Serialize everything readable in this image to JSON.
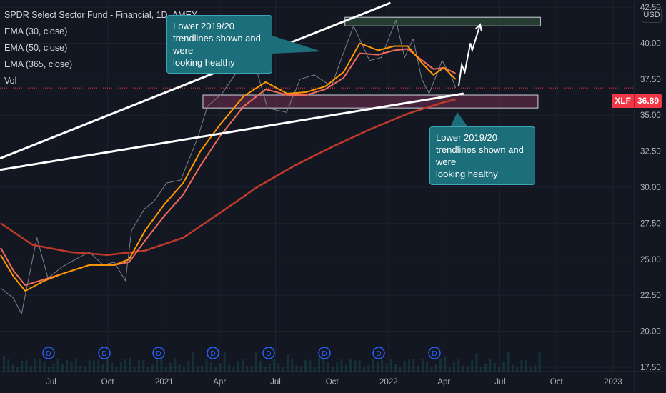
{
  "legend": {
    "title": "SPDR Select Sector Fund - Financial, 1D, AMEX",
    "indicators": [
      "EMA (30, close)",
      "EMA (50, close)",
      "EMA (365, close)",
      "Vol"
    ]
  },
  "currency": "USD",
  "price_tag": {
    "symbol": "XLF",
    "value": "36.89"
  },
  "callouts": [
    {
      "lines": [
        "Lower 2019/20",
        "trendlines shown and were",
        "looking healthy"
      ]
    },
    {
      "lines": [
        "Lower 2019/20",
        "trendlines shown and were",
        "looking healthy"
      ]
    }
  ],
  "colors": {
    "background": "#131722",
    "grid": "#1e222d",
    "candle_up": "#26a69a",
    "candle_down": "#ef5350",
    "ema30": "#ff9800",
    "ema50": "#f06a5b",
    "ema365": "#c0392b",
    "trendline": "#ffffff",
    "resistance_box": "#2e4a3a",
    "support_box": "#5a2a44",
    "price_line": "#f23645"
  },
  "chart_data": {
    "type": "line",
    "title": "SPDR Select Sector Fund - Financial, 1D, AMEX",
    "y_ticks": [
      17.5,
      20.0,
      22.5,
      25.0,
      27.5,
      30.0,
      32.5,
      35.0,
      37.5,
      40.0,
      42.5
    ],
    "y_tick_labels": [
      "17.50",
      "20.00",
      "22.50",
      "25.00",
      "27.50",
      "30.00",
      "32.50",
      "35.00",
      "37.50",
      "40.00",
      "42.50"
    ],
    "ylim": [
      17.2,
      43.0
    ],
    "x_tick_labels": [
      "Jul",
      "Oct",
      "2021",
      "Apr",
      "Jul",
      "Oct",
      "2022",
      "Apr",
      "Jul",
      "Oct",
      "2023"
    ],
    "x_ticks": [
      "2020-07-01",
      "2020-10-01",
      "2021-01-01",
      "2021-04-01",
      "2021-07-01",
      "2021-10-01",
      "2022-01-01",
      "2022-04-01",
      "2022-07-01",
      "2022-10-01",
      "2023-01-01"
    ],
    "xlim": [
      "2020-04-09",
      "2023-02-05"
    ],
    "last_price": 36.89,
    "series": [
      {
        "name": "Price",
        "x": [
          "2020-04-10",
          "2020-05-01",
          "2020-05-14",
          "2020-06-08",
          "2020-06-26",
          "2020-07-20",
          "2020-08-10",
          "2020-09-01",
          "2020-09-24",
          "2020-10-12",
          "2020-10-30",
          "2020-11-09",
          "2020-11-30",
          "2020-12-15",
          "2021-01-05",
          "2021-01-28",
          "2021-02-25",
          "2021-03-12",
          "2021-04-05",
          "2021-05-07",
          "2021-05-28",
          "2021-06-18",
          "2021-07-19",
          "2021-08-10",
          "2021-09-02",
          "2021-09-30",
          "2021-10-15",
          "2021-11-05",
          "2021-12-01",
          "2021-12-20",
          "2022-01-13",
          "2022-01-27",
          "2022-02-10",
          "2022-02-24",
          "2022-03-08",
          "2022-03-29",
          "2022-04-14",
          "2022-04-20"
        ],
        "values": [
          23.0,
          22.3,
          21.2,
          26.5,
          23.7,
          24.5,
          25.0,
          25.5,
          24.6,
          24.8,
          23.5,
          27.0,
          28.5,
          29.0,
          30.3,
          30.5,
          33.5,
          35.6,
          36.5,
          38.5,
          38.6,
          35.5,
          35.2,
          37.5,
          37.8,
          37.0,
          38.8,
          41.2,
          38.8,
          39.0,
          41.6,
          39.0,
          40.3,
          37.5,
          36.5,
          38.8,
          37.6,
          36.9
        ]
      },
      {
        "name": "EMA (30, close)",
        "x": [
          "2020-04-10",
          "2020-05-01",
          "2020-05-20",
          "2020-06-20",
          "2020-07-20",
          "2020-09-01",
          "2020-10-12",
          "2020-11-05",
          "2020-12-01",
          "2021-01-01",
          "2021-02-01",
          "2021-03-01",
          "2021-04-01",
          "2021-05-10",
          "2021-06-15",
          "2021-07-20",
          "2021-08-20",
          "2021-09-20",
          "2021-10-20",
          "2021-11-15",
          "2021-12-15",
          "2022-01-10",
          "2022-02-01",
          "2022-02-25",
          "2022-03-15",
          "2022-04-01",
          "2022-04-20"
        ],
        "values": [
          25.3,
          23.8,
          22.8,
          23.5,
          24.0,
          24.6,
          24.6,
          25.0,
          27.0,
          28.8,
          30.3,
          32.5,
          34.3,
          36.3,
          37.3,
          36.5,
          36.6,
          37.0,
          38.0,
          40.0,
          39.5,
          39.8,
          39.8,
          38.6,
          37.8,
          38.3,
          37.5
        ]
      },
      {
        "name": "EMA (50, close)",
        "x": [
          "2020-04-10",
          "2020-05-01",
          "2020-05-20",
          "2020-06-20",
          "2020-07-20",
          "2020-09-01",
          "2020-10-12",
          "2020-11-05",
          "2020-12-01",
          "2021-01-01",
          "2021-02-01",
          "2021-03-01",
          "2021-04-01",
          "2021-05-10",
          "2021-06-15",
          "2021-07-20",
          "2021-08-20",
          "2021-09-20",
          "2021-10-20",
          "2021-11-15",
          "2021-12-15",
          "2022-01-10",
          "2022-02-01",
          "2022-02-25",
          "2022-03-15",
          "2022-04-01",
          "2022-04-20"
        ],
        "values": [
          25.8,
          24.2,
          23.2,
          23.6,
          24.0,
          24.6,
          24.6,
          24.8,
          26.3,
          28.0,
          29.5,
          31.5,
          33.5,
          35.6,
          36.8,
          36.4,
          36.4,
          36.8,
          37.6,
          39.3,
          39.2,
          39.5,
          39.6,
          38.8,
          38.2,
          38.3,
          37.9
        ]
      },
      {
        "name": "EMA (365, close)",
        "x": [
          "2020-04-10",
          "2020-06-01",
          "2020-08-01",
          "2020-10-01",
          "2020-12-01",
          "2021-02-01",
          "2021-04-01",
          "2021-06-01",
          "2021-08-01",
          "2021-10-01",
          "2021-12-01",
          "2022-02-01",
          "2022-04-01",
          "2022-04-20"
        ],
        "values": [
          27.5,
          26.0,
          25.5,
          25.3,
          25.6,
          26.5,
          28.2,
          30.0,
          31.5,
          32.8,
          34.0,
          35.1,
          35.9,
          36.1
        ]
      }
    ],
    "annotations": {
      "upper_trendline": {
        "from": [
          "2020-04-09",
          32.0
        ],
        "to": [
          "2022-01-04",
          42.8
        ]
      },
      "lower_trendline": {
        "from": [
          "2020-04-09",
          31.2
        ],
        "to": [
          "2022-05-03",
          36.5
        ]
      },
      "resistance_box": {
        "from": [
          "2021-10-22",
          41.2
        ],
        "to": [
          "2022-09-05",
          41.8
        ]
      },
      "support_box": {
        "from": [
          "2021-03-05",
          35.5
        ],
        "to": [
          "2022-09-01",
          36.4
        ]
      },
      "projection_path": [
        [
          "2022-04-25",
          37.0
        ],
        [
          "2022-04-30",
          38.5
        ],
        [
          "2022-05-05",
          38.0
        ],
        [
          "2022-05-14",
          40.0
        ],
        [
          "2022-05-17",
          39.5
        ],
        [
          "2022-05-30",
          41.3
        ]
      ]
    }
  }
}
